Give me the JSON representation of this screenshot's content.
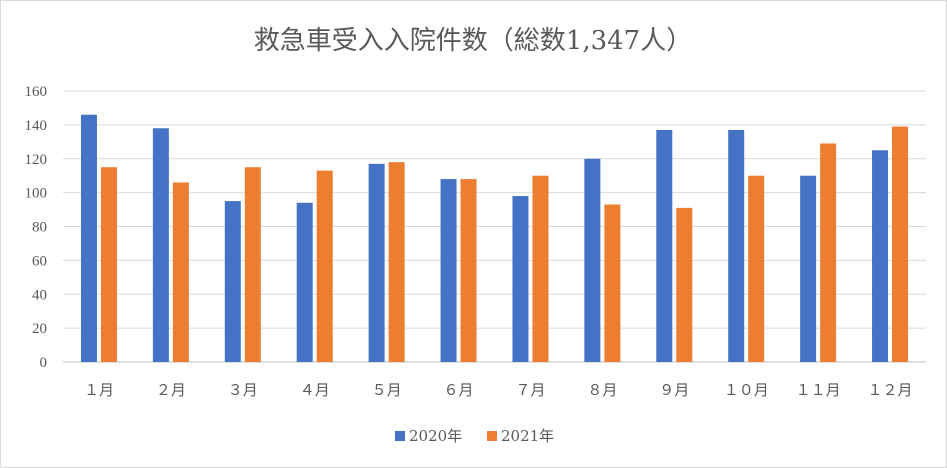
{
  "chart_data": {
    "type": "bar",
    "title": "救急車受入入院件数（総数1,347人）",
    "categories": [
      "１月",
      "２月",
      "３月",
      "４月",
      "５月",
      "６月",
      "７月",
      "８月",
      "９月",
      "１０月",
      "１１月",
      "１２月"
    ],
    "series": [
      {
        "name": "2020年",
        "color": "#4472C4",
        "values": [
          146,
          138,
          95,
          94,
          117,
          108,
          98,
          120,
          137,
          137,
          110,
          125
        ]
      },
      {
        "name": "2021年",
        "color": "#ED7D31",
        "values": [
          115,
          106,
          115,
          113,
          118,
          108,
          110,
          93,
          91,
          110,
          129,
          139
        ]
      }
    ],
    "ylim": [
      0,
      160
    ],
    "yticks": [
      0,
      20,
      40,
      60,
      80,
      100,
      120,
      140,
      160
    ],
    "grid": true,
    "legend_position": "bottom"
  }
}
